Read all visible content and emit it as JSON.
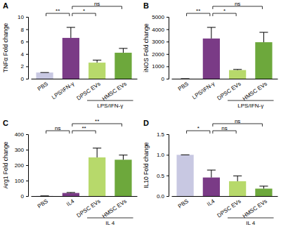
{
  "chart_data": [
    {
      "type": "bar",
      "label": "A",
      "y_label": "TNFα Fold change",
      "categories": [
        "PBS",
        "LPS/IFN-γ",
        "DPSC EVs",
        "HMSC EVs"
      ],
      "values": [
        1,
        6.6,
        2.6,
        4.2
      ],
      "errors": [
        0,
        1.7,
        0.4,
        0.7
      ],
      "colors": [
        "#c8c8e2",
        "#7a3b86",
        "#b7d96b",
        "#6da83c"
      ],
      "ylim": [
        0,
        10
      ],
      "yticks": [
        0,
        2,
        4,
        6,
        8,
        10
      ],
      "annotations": [
        {
          "from": 0,
          "to": 1,
          "label": "**"
        },
        {
          "from": 1,
          "to": 2,
          "label": "*"
        },
        {
          "from": 1,
          "to": 3,
          "label": "ns"
        }
      ],
      "group": {
        "label": "LPS/IFN-γ",
        "from": 2,
        "to": 3
      }
    },
    {
      "type": "bar",
      "label": "B",
      "y_label": "iNOS Fold change",
      "categories": [
        "PBS",
        "LPS/IFN-γ",
        "DPSC EVs",
        "HMSC EVs"
      ],
      "values": [
        1,
        3250,
        700,
        2950
      ],
      "errors": [
        0,
        900,
        50,
        800
      ],
      "colors": [
        "#c8c8e2",
        "#7a3b86",
        "#b7d96b",
        "#6da83c"
      ],
      "ylim": [
        0,
        5000
      ],
      "yticks": [
        0,
        1000,
        2000,
        3000,
        4000,
        5000
      ],
      "annotations": [
        {
          "from": 0,
          "to": 1,
          "label": "**"
        },
        {
          "from": 1,
          "to": 2,
          "label": "*"
        },
        {
          "from": 1,
          "to": 3,
          "label": "ns"
        }
      ],
      "group": {
        "label": "LPS/IFN-γ",
        "from": 2,
        "to": 3
      }
    },
    {
      "type": "bar",
      "label": "C",
      "y_label": "Arg1 Fold change",
      "categories": [
        "PBS",
        "IL4",
        "DPSC EVs",
        "HMSC EVs"
      ],
      "values": [
        1,
        20,
        250,
        235
      ],
      "errors": [
        0,
        3,
        60,
        30
      ],
      "colors": [
        "#c8c8e2",
        "#7a3b86",
        "#b7d96b",
        "#6da83c"
      ],
      "ylim": [
        0,
        400
      ],
      "yticks": [
        0,
        100,
        200,
        300,
        400
      ],
      "annotations": [
        {
          "from": 0,
          "to": 1,
          "label": "ns"
        },
        {
          "from": 1,
          "to": 2,
          "label": "**"
        },
        {
          "from": 1,
          "to": 3,
          "label": "**"
        }
      ],
      "group": {
        "label": "IL 4",
        "from": 2,
        "to": 3
      }
    },
    {
      "type": "bar",
      "label": "D",
      "y_label": "IL10 Fold change",
      "categories": [
        "PBS",
        "IL4",
        "DPSC EVs",
        "HMSC EVs"
      ],
      "values": [
        1,
        0.45,
        0.36,
        0.18
      ],
      "errors": [
        0,
        0.18,
        0.13,
        0.06
      ],
      "colors": [
        "#c8c8e2",
        "#7a3b86",
        "#b7d96b",
        "#6da83c"
      ],
      "ylim": [
        0,
        1.5
      ],
      "yticks": [
        {
          "value": 0,
          "label": "0.0"
        },
        0.5,
        {
          "value": 1,
          "label": "1.0"
        },
        1.5
      ],
      "annotations": [
        {
          "from": 0,
          "to": 1,
          "label": "*"
        },
        {
          "from": 1,
          "to": 2,
          "label": "ns"
        },
        {
          "from": 1,
          "to": 3,
          "label": "ns"
        }
      ],
      "group": {
        "label": "IL 4",
        "from": 2,
        "to": 3
      }
    }
  ]
}
